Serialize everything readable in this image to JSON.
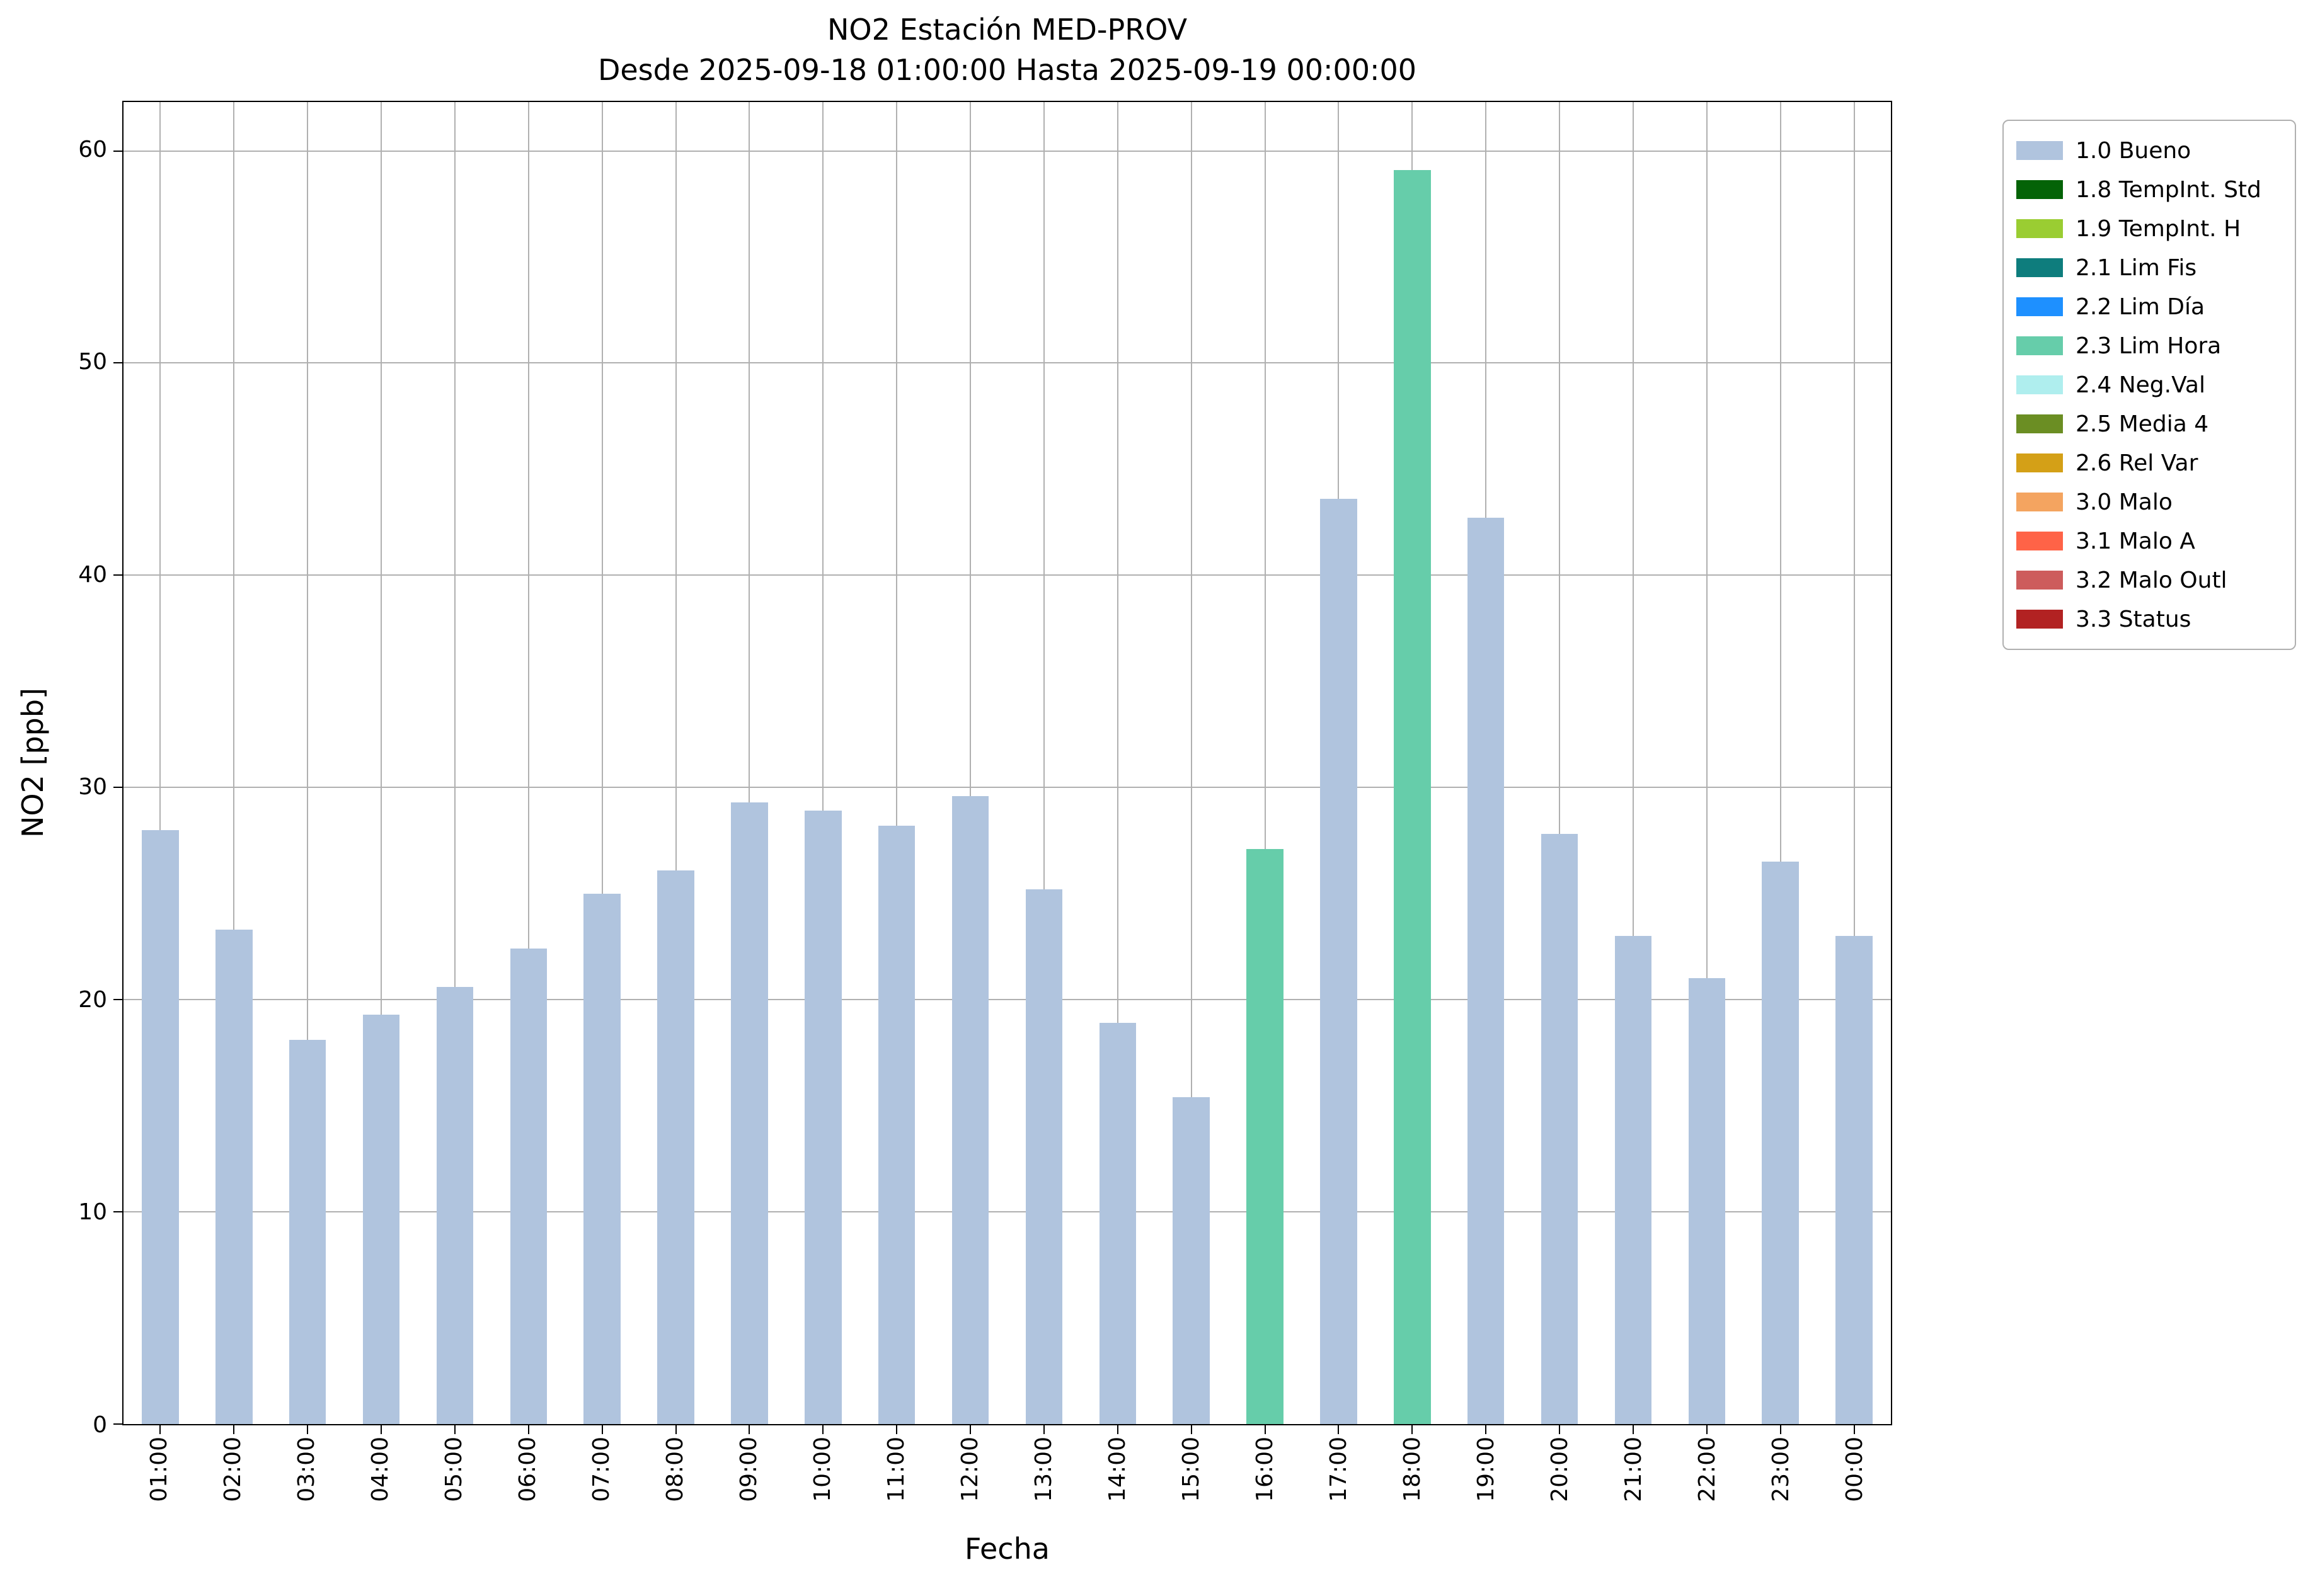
{
  "chart_data": {
    "type": "bar",
    "title": "NO2 Estación MED-PROV",
    "subtitle": "Desde 2025-09-18 01:00:00 Hasta 2025-09-19 00:00:00",
    "xlabel": "Fecha",
    "ylabel": "NO2 [ppb]",
    "ylim": [
      0,
      62.3
    ],
    "yticks": [
      0,
      10,
      20,
      30,
      40,
      50,
      60
    ],
    "grid": true,
    "legend_position": "outside upper right",
    "bar_width_fraction": 0.5,
    "categories": [
      "01:00",
      "02:00",
      "03:00",
      "04:00",
      "05:00",
      "06:00",
      "07:00",
      "08:00",
      "09:00",
      "10:00",
      "11:00",
      "12:00",
      "13:00",
      "14:00",
      "15:00",
      "16:00",
      "17:00",
      "18:00",
      "19:00",
      "20:00",
      "21:00",
      "22:00",
      "23:00",
      "00:00"
    ],
    "values": [
      28.0,
      23.3,
      18.1,
      19.3,
      20.6,
      22.4,
      25.0,
      26.1,
      29.3,
      28.9,
      28.2,
      29.6,
      25.2,
      18.9,
      15.4,
      27.1,
      43.6,
      59.1,
      42.7,
      27.8,
      23.0,
      21.0,
      26.5,
      23.0
    ],
    "bar_flags": [
      "1.0 Bueno",
      "1.0 Bueno",
      "1.0 Bueno",
      "1.0 Bueno",
      "1.0 Bueno",
      "1.0 Bueno",
      "1.0 Bueno",
      "1.0 Bueno",
      "1.0 Bueno",
      "1.0 Bueno",
      "1.0 Bueno",
      "1.0 Bueno",
      "1.0 Bueno",
      "1.0 Bueno",
      "1.0 Bueno",
      "2.3 Lim Hora",
      "1.0 Bueno",
      "2.3 Lim Hora",
      "1.0 Bueno",
      "1.0 Bueno",
      "1.0 Bueno",
      "1.0 Bueno",
      "1.0 Bueno",
      "1.0 Bueno"
    ],
    "colors": {
      "grid": "#b0b0b0",
      "axis": "#000000"
    },
    "legend": [
      {
        "label": "1.0 Bueno",
        "color": "#b0c4de"
      },
      {
        "label": "1.8 TempInt. Std",
        "color": "#046307"
      },
      {
        "label": "1.9 TempInt. H",
        "color": "#9acd32"
      },
      {
        "label": "2.1 Lim Fis",
        "color": "#0e7d7d"
      },
      {
        "label": "2.2 Lim Día",
        "color": "#1e90ff"
      },
      {
        "label": "2.3 Lim Hora",
        "color": "#66cdaa"
      },
      {
        "label": "2.4 Neg.Val",
        "color": "#afeeee"
      },
      {
        "label": "2.5 Media 4",
        "color": "#6b8e23"
      },
      {
        "label": "2.6 Rel Var",
        "color": "#d4a017"
      },
      {
        "label": "3.0 Malo",
        "color": "#f4a460"
      },
      {
        "label": "3.1 Malo A",
        "color": "#ff6347"
      },
      {
        "label": "3.2 Malo Outl",
        "color": "#cd5c5c"
      },
      {
        "label": "3.3 Status",
        "color": "#b22222"
      }
    ]
  }
}
